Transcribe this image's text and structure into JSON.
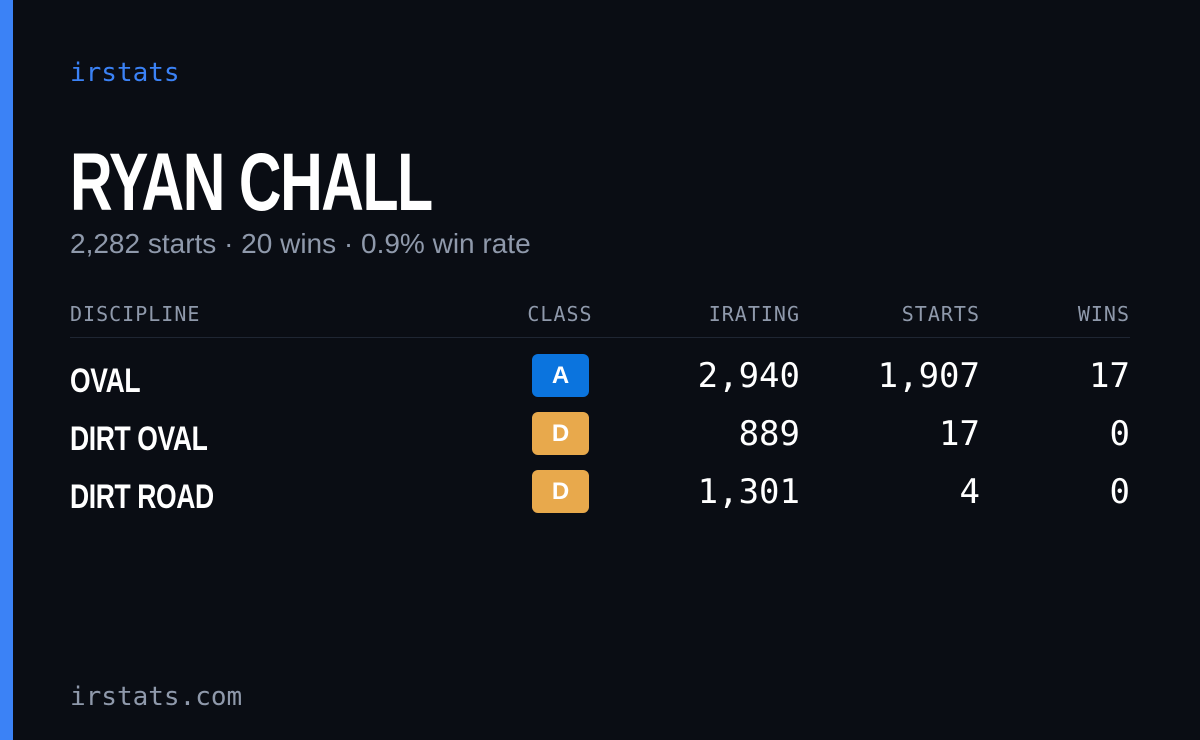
{
  "brand": "irstats",
  "driver": {
    "name": "RYAN CHALL",
    "summary": "2,282 starts · 20 wins · 0.9% win rate"
  },
  "table": {
    "headers": [
      "DISCIPLINE",
      "CLASS",
      "IRATING",
      "STARTS",
      "WINS"
    ],
    "rows": [
      {
        "discipline": "OVAL",
        "class": "A",
        "class_color": "#0b74de",
        "irating": "2,940",
        "starts": "1,907",
        "wins": "17"
      },
      {
        "discipline": "DIRT OVAL",
        "class": "D",
        "class_color": "#e8a94c",
        "irating": "889",
        "starts": "17",
        "wins": "0"
      },
      {
        "discipline": "DIRT ROAD",
        "class": "D",
        "class_color": "#e8a94c",
        "irating": "1,301",
        "starts": "4",
        "wins": "0"
      }
    ]
  },
  "footer": "irstats.com"
}
